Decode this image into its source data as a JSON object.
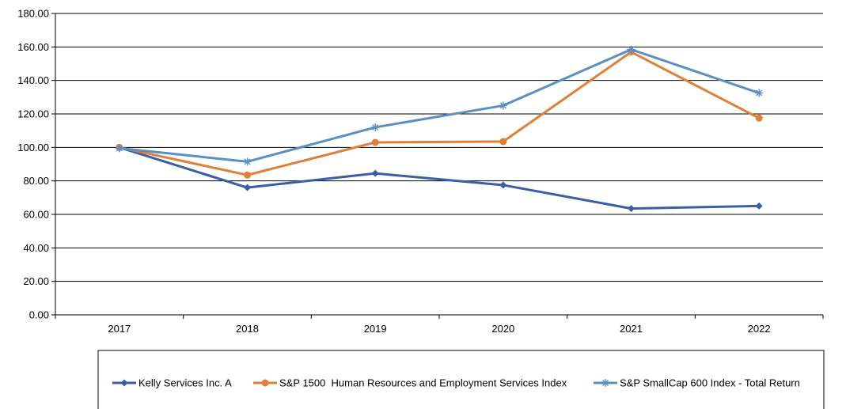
{
  "chart_data": {
    "type": "line",
    "categories": [
      "2017",
      "2018",
      "2019",
      "2020",
      "2021",
      "2022"
    ],
    "ylim": [
      0,
      180
    ],
    "yticks": [
      0,
      20,
      40,
      60,
      80,
      100,
      120,
      140,
      160,
      180
    ],
    "ytick_labels": [
      "0.00",
      "20.00",
      "40.00",
      "60.00",
      "80.00",
      "100.00",
      "120.00",
      "140.00",
      "160.00",
      "180.00"
    ],
    "grid": true,
    "legend_position": "bottom",
    "series": [
      {
        "name": "Kelly Services Inc. A",
        "color": "#3b5ca8",
        "marker": "diamond",
        "values": [
          100.0,
          76.0,
          84.5,
          77.5,
          63.5,
          65.0
        ]
      },
      {
        "name": "S&P 1500  Human Resources and Employment Services Index",
        "color": "#e07f37",
        "marker": "circle",
        "values": [
          100.0,
          83.5,
          103.0,
          103.5,
          157.0,
          117.5
        ]
      },
      {
        "name": "S&P SmallCap 600 Index - Total Return",
        "color": "#5a8fc4",
        "marker": "asterisk",
        "values": [
          99.5,
          91.5,
          112.0,
          125.0,
          158.5,
          132.5
        ]
      }
    ]
  }
}
